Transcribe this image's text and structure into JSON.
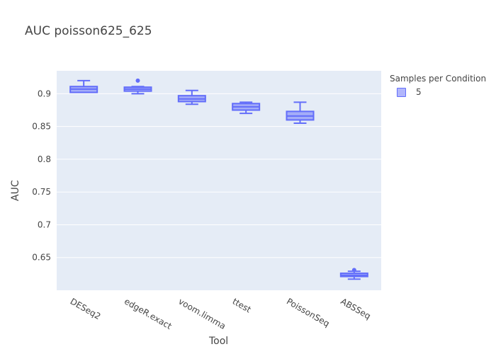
{
  "title": "AUC poisson625_625",
  "chart_data": {
    "type": "box",
    "title": "AUC poisson625_625",
    "xlabel": "Tool",
    "ylabel": "AUC",
    "ylim": [
      0.6,
      0.935
    ],
    "yticks": [
      0.65,
      0.7,
      0.75,
      0.8,
      0.85,
      0.9
    ],
    "ytick_labels": [
      "0.65",
      "0.7",
      "0.75",
      "0.8",
      "0.85",
      "0.9"
    ],
    "categories": [
      "DESeq2",
      "edgeR.exact",
      "voom.limma",
      "ttest",
      "PoissonSeq",
      "ABSSeq"
    ],
    "legend": {
      "title": "Samples per Condition",
      "position": "top-right"
    },
    "series": [
      {
        "name": "5",
        "color": "#636efa",
        "boxes": [
          {
            "category": "DESeq2",
            "min": 0.902,
            "q1": 0.902,
            "median": 0.907,
            "q3": 0.911,
            "max": 0.92,
            "outliers": []
          },
          {
            "category": "edgeR.exact",
            "min": 0.9,
            "q1": 0.904,
            "median": 0.907,
            "q3": 0.91,
            "max": 0.911,
            "outliers": [
              0.92
            ]
          },
          {
            "category": "voom.limma",
            "min": 0.884,
            "q1": 0.888,
            "median": 0.892,
            "q3": 0.897,
            "max": 0.905,
            "outliers": []
          },
          {
            "category": "ttest",
            "min": 0.87,
            "q1": 0.875,
            "median": 0.88,
            "q3": 0.885,
            "max": 0.887,
            "outliers": []
          },
          {
            "category": "PoissonSeq",
            "min": 0.855,
            "q1": 0.86,
            "median": 0.866,
            "q3": 0.873,
            "max": 0.887,
            "outliers": []
          },
          {
            "category": "ABSSeq",
            "min": 0.617,
            "q1": 0.621,
            "median": 0.623,
            "q3": 0.626,
            "max": 0.629,
            "outliers": [
              0.631
            ]
          }
        ]
      }
    ]
  }
}
